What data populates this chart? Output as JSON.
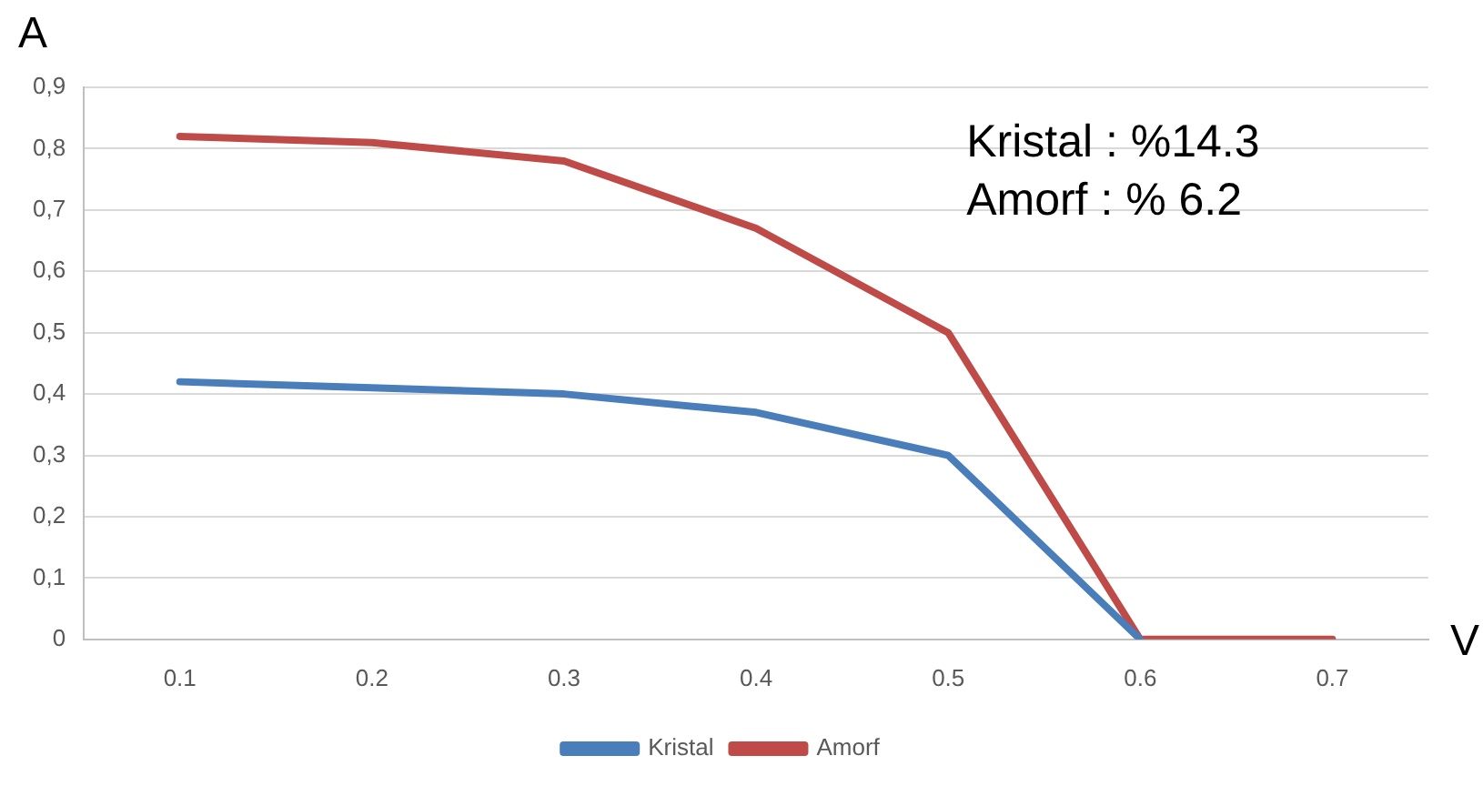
{
  "chart_data": {
    "type": "line",
    "xlabel": "V",
    "ylabel": "A",
    "categories": [
      "0.1",
      "0.2",
      "0.3",
      "0.4",
      "0.5",
      "0.6",
      "0.7"
    ],
    "series": [
      {
        "name": "Kristal",
        "color": "#4a7ebb",
        "values": [
          0.42,
          0.41,
          0.4,
          0.37,
          0.3,
          0,
          null
        ]
      },
      {
        "name": "Amorf",
        "color": "#be4b48",
        "values": [
          0.82,
          0.81,
          0.78,
          0.67,
          0.5,
          0,
          0
        ]
      }
    ],
    "ylim": [
      0,
      0.9
    ],
    "yticks": [
      0,
      {
        "value": 0.1,
        "label": "0,1"
      },
      {
        "value": 0.2,
        "label": "0,2"
      },
      {
        "value": 0.3,
        "label": "0,3"
      },
      {
        "value": 0.4,
        "label": "0,4"
      },
      {
        "value": 0.5,
        "label": "0,5"
      },
      {
        "value": 0.6,
        "label": "0,6"
      },
      {
        "value": 0.7,
        "label": "0,7"
      },
      {
        "value": 0.8,
        "label": "0,8"
      },
      {
        "value": 0.9,
        "label": "0,9"
      }
    ],
    "annotations": [
      "Kristal : %14.3",
      "Amorf : % 6.2"
    ],
    "grid": "y",
    "legend": "bottom",
    "marker": "none",
    "line_style": "solid"
  }
}
